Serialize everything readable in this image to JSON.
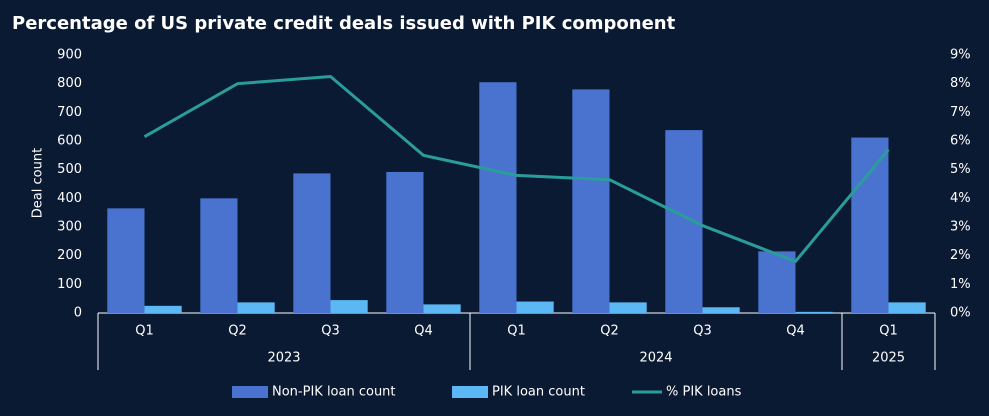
{
  "chart_data": {
    "type": "bar-line",
    "title": "Percentage of US private credit deals issued with PIK component",
    "y_label": "Deal count",
    "categories": [
      "Q1",
      "Q2",
      "Q3",
      "Q4",
      "Q1",
      "Q2",
      "Q3",
      "Q4",
      "Q1"
    ],
    "groups": [
      {
        "label": "2023",
        "size": 4
      },
      {
        "label": "2024",
        "size": 4
      },
      {
        "label": "2025",
        "size": 1
      }
    ],
    "series": [
      {
        "name": "Non-PIK loan count",
        "color": "#4a73cf",
        "values": [
          365,
          400,
          487,
          492,
          805,
          780,
          638,
          215,
          612
        ]
      },
      {
        "name": "PIK loan count",
        "color": "#5bb8f5",
        "values": [
          25,
          37,
          45,
          30,
          40,
          37,
          20,
          4,
          37
        ]
      },
      {
        "name": "% PIK loans",
        "color": "#2a9d9a",
        "type": "line",
        "axis": "y2",
        "values": [
          6.15,
          8.0,
          8.25,
          5.5,
          4.8,
          4.65,
          3.05,
          1.8,
          5.7
        ]
      }
    ],
    "ylim": [
      0,
      900
    ],
    "yticks": [
      0,
      100,
      200,
      300,
      400,
      500,
      600,
      700,
      800,
      900
    ],
    "y2lim": [
      0,
      9
    ],
    "y2ticks": [
      {
        "value": 0,
        "label": "0%"
      },
      {
        "value": 1,
        "label": "1%"
      },
      {
        "value": 2,
        "label": "2%"
      },
      {
        "value": 3,
        "label": "3%"
      },
      {
        "value": 4,
        "label": "4%"
      },
      {
        "value": 5,
        "label": "5%"
      },
      {
        "value": 6,
        "label": "6%"
      },
      {
        "value": 7,
        "label": "7%"
      },
      {
        "value": 8,
        "label": "8%"
      },
      {
        "value": 9,
        "label": "9%"
      }
    ],
    "legend": "bottom"
  }
}
